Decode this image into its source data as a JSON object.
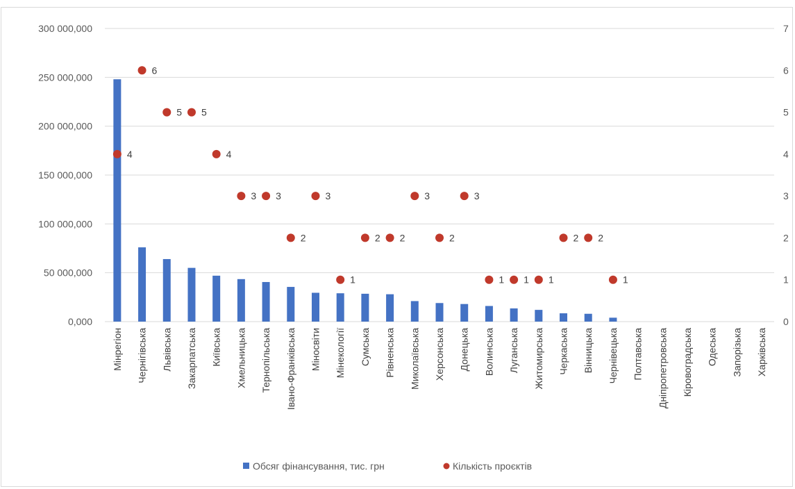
{
  "chart_data": {
    "type": "bar",
    "categories": [
      "Мінрегіон",
      "Чернігівська",
      "Львівська",
      "Закарпатська",
      "Київська",
      "Хмельницька",
      "Тернопільська",
      "Івано-Франківська",
      "Міносвіти",
      "Мінекології",
      "Сумська",
      "Рівненська",
      "Миколаївська",
      "Херсонська",
      "Донецька",
      "Волинська",
      "Луганська",
      "Житомирська",
      "Черкаська",
      "Вінницька",
      "Чернівецька",
      "Полтавська",
      "Дніпропетровська",
      "Кіровоградська",
      "Одеська",
      "Запорізька",
      "Харківська"
    ],
    "series": [
      {
        "name": "Обсяг фінансування, тис. грн",
        "type": "bar",
        "axis": "left",
        "values": [
          248000000,
          76000000,
          64000000,
          55000000,
          47000000,
          43500000,
          40500000,
          35500000,
          29500000,
          29000000,
          28500000,
          28000000,
          21000000,
          19000000,
          18000000,
          16000000,
          13500000,
          12000000,
          8500000,
          8000000,
          4000000,
          0,
          0,
          0,
          0,
          0,
          0
        ]
      },
      {
        "name": "Кількість проєктів",
        "type": "scatter",
        "axis": "right",
        "values": [
          4,
          6,
          5,
          5,
          4,
          3,
          3,
          2,
          3,
          1,
          2,
          2,
          3,
          2,
          3,
          1,
          1,
          1,
          2,
          2,
          1,
          null,
          null,
          null,
          null,
          null,
          null
        ]
      }
    ],
    "y_left": {
      "min": 0,
      "max": 300000000,
      "ticks": [
        "0,000",
        "50 000,000",
        "100 000,000",
        "150 000,000",
        "200 000,000",
        "250 000,000",
        "300 000,000"
      ]
    },
    "y_right": {
      "min": 0,
      "max": 7,
      "ticks": [
        "0",
        "1",
        "2",
        "3",
        "4",
        "5",
        "6",
        "7"
      ]
    },
    "grid": true,
    "legend_position": "bottom",
    "colors": {
      "bar": "#4472c4",
      "marker": "#c0392b",
      "grid": "#d9d9d9"
    }
  }
}
